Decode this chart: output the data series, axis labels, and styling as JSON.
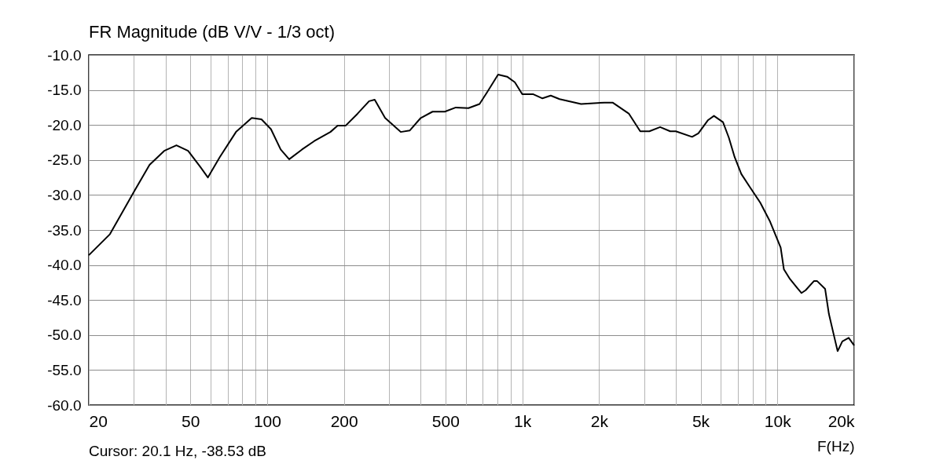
{
  "chart_data": {
    "type": "line",
    "title": "FR Magnitude (dB V/V - 1/3 oct)",
    "xlabel": "F(Hz)",
    "annotations": [
      "Cursor: 20.1 Hz, -38.53 dB"
    ],
    "log": "x",
    "grid": true,
    "line_style": "solid",
    "marker": "none",
    "x": [
      20,
      24.2,
      30,
      34.6,
      39.5,
      44.1,
      49,
      54.5,
      58.6,
      65.2,
      75.5,
      87,
      95,
      103.5,
      113,
      122,
      137,
      153,
      177,
      189,
      203,
      226,
      251,
      264,
      290,
      334,
      362,
      400,
      445,
      497,
      549,
      615,
      680,
      729,
      804,
      872,
      935,
      1000,
      1101,
      1200,
      1293,
      1400,
      1700,
      2100,
      2260,
      2620,
      2900,
      3150,
      3470,
      3800,
      4000,
      4630,
      4900,
      5350,
      5640,
      6120,
      6450,
      6800,
      7220,
      7780,
      8570,
      9360,
      10300,
      10600,
      11200,
      11980,
      12430,
      12900,
      13900,
      14320,
      15380,
      15920,
      16740,
      17220,
      17970,
      19030,
      20000
    ],
    "series": [
      {
        "color": "#000000",
        "values": [
          -38.6,
          -35.6,
          -29.6,
          -25.7,
          -23.7,
          -22.9,
          -23.7,
          -25.9,
          -27.5,
          -24.6,
          -21.0,
          -19.0,
          -19.2,
          -20.6,
          -23.5,
          -24.9,
          -23.5,
          -22.3,
          -21.0,
          -20.1,
          -20.1,
          -18.4,
          -16.6,
          -16.4,
          -19.0,
          -21.0,
          -20.8,
          -19.0,
          -18.1,
          -18.1,
          -17.5,
          -17.6,
          -17.0,
          -15.3,
          -12.8,
          -13.1,
          -13.9,
          -15.6,
          -15.6,
          -16.2,
          -15.8,
          -16.3,
          -17.0,
          -16.8,
          -16.8,
          -18.4,
          -20.9,
          -20.9,
          -20.3,
          -20.9,
          -20.9,
          -21.7,
          -21.2,
          -19.3,
          -18.7,
          -19.6,
          -21.8,
          -24.6,
          -27.0,
          -28.8,
          -31.1,
          -33.8,
          -37.5,
          -40.6,
          -42.0,
          -43.3,
          -44.0,
          -43.6,
          -42.3,
          -42.3,
          -43.4,
          -47.0,
          -50.4,
          -52.3,
          -50.9,
          -50.4,
          -51.5
        ]
      }
    ],
    "xlim": [
      20,
      20000
    ],
    "xticks": [
      20,
      {
        "value": 30,
        "label": null
      },
      {
        "value": 40,
        "label": null
      },
      50,
      {
        "value": 60,
        "label": null
      },
      {
        "value": 70,
        "label": null
      },
      {
        "value": 80,
        "label": null
      },
      {
        "value": 90,
        "label": null
      },
      100,
      200,
      {
        "value": 300,
        "label": null
      },
      {
        "value": 400,
        "label": null
      },
      500,
      {
        "value": 600,
        "label": null
      },
      {
        "value": 700,
        "label": null
      },
      {
        "value": 800,
        "label": null
      },
      {
        "value": 900,
        "label": null
      },
      {
        "value": 1000,
        "label": "1k"
      },
      {
        "value": 2000,
        "label": "2k"
      },
      {
        "value": 3000,
        "label": null
      },
      {
        "value": 4000,
        "label": null
      },
      {
        "value": 5000,
        "label": "5k"
      },
      {
        "value": 6000,
        "label": null
      },
      {
        "value": 7000,
        "label": null
      },
      {
        "value": 8000,
        "label": null
      },
      {
        "value": 9000,
        "label": null
      },
      {
        "value": 10000,
        "label": "10k"
      },
      {
        "value": 20000,
        "label": "20k"
      }
    ],
    "ylim": [
      -60,
      -10
    ],
    "yticks": [
      {
        "value": -60,
        "label": "-60.0"
      },
      {
        "value": -55,
        "label": "-55.0"
      },
      {
        "value": -50,
        "label": "-50.0"
      },
      {
        "value": -45,
        "label": "-45.0"
      },
      {
        "value": -40,
        "label": "-40.0"
      },
      {
        "value": -35,
        "label": "-35.0"
      },
      {
        "value": -30,
        "label": "-30.0"
      },
      {
        "value": -25,
        "label": "-25.0"
      },
      {
        "value": -20,
        "label": "-20.0"
      },
      {
        "value": -15,
        "label": "-15.0"
      },
      {
        "value": -10,
        "label": "-10.0"
      }
    ]
  }
}
